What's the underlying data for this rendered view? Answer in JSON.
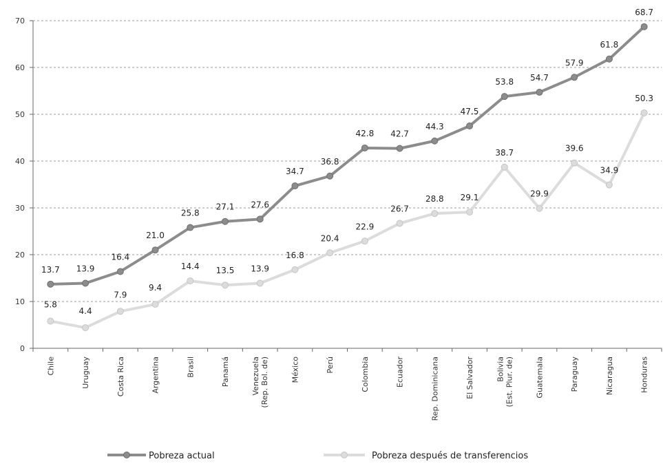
{
  "chart_data": {
    "type": "line",
    "categories": [
      "Chile",
      "Uruguay",
      "Costa Rica",
      "Argentina",
      "Brasil",
      "Panamá",
      "Venezuela\n(Rep. Bol. de)",
      "México",
      "Perú",
      "Colombia",
      "Ecuador",
      "Rep. Dominicana",
      "El Salvador",
      "Bolivia\n(Est. Plur. de)",
      "Guatemala",
      "Paraguay",
      "Nicaragua",
      "Honduras"
    ],
    "series": [
      {
        "name": "Pobreza actual",
        "color": "#8c8c8c",
        "values": [
          13.7,
          13.9,
          16.4,
          21.0,
          25.8,
          27.1,
          27.6,
          34.7,
          36.8,
          42.8,
          42.7,
          44.3,
          47.5,
          53.8,
          54.7,
          57.9,
          61.8,
          68.7
        ],
        "labels": [
          "13.7",
          "13.9",
          "16.4",
          "21.0",
          "25.8",
          "27.1",
          "27.6",
          "34.7",
          "36.8",
          "42.8",
          "42.7",
          "44.3",
          "47.5",
          "53.8",
          "54.7",
          "57.9",
          "61.8",
          "68.7"
        ]
      },
      {
        "name": "Pobreza después de transferencios",
        "color": "#dcdcdc",
        "values": [
          5.8,
          4.4,
          7.9,
          9.4,
          14.4,
          13.5,
          13.9,
          16.8,
          20.4,
          22.9,
          26.7,
          28.8,
          29.1,
          38.7,
          29.9,
          39.6,
          34.9,
          50.3
        ],
        "labels": [
          "5.8",
          "4.4",
          "7.9",
          "9.4",
          "14.4",
          "13.5",
          "13.9",
          "16.8",
          "20.4",
          "22.9",
          "26.7",
          "28.8",
          "29.1",
          "38.7",
          "29.9",
          "39.6",
          "34.9",
          "50.3"
        ]
      }
    ],
    "yticks": [
      "0",
      "10",
      "20",
      "30",
      "40",
      "50",
      "60",
      "70"
    ],
    "ylim": [
      0,
      70
    ],
    "grid": true,
    "legend_placement": "bottom"
  }
}
